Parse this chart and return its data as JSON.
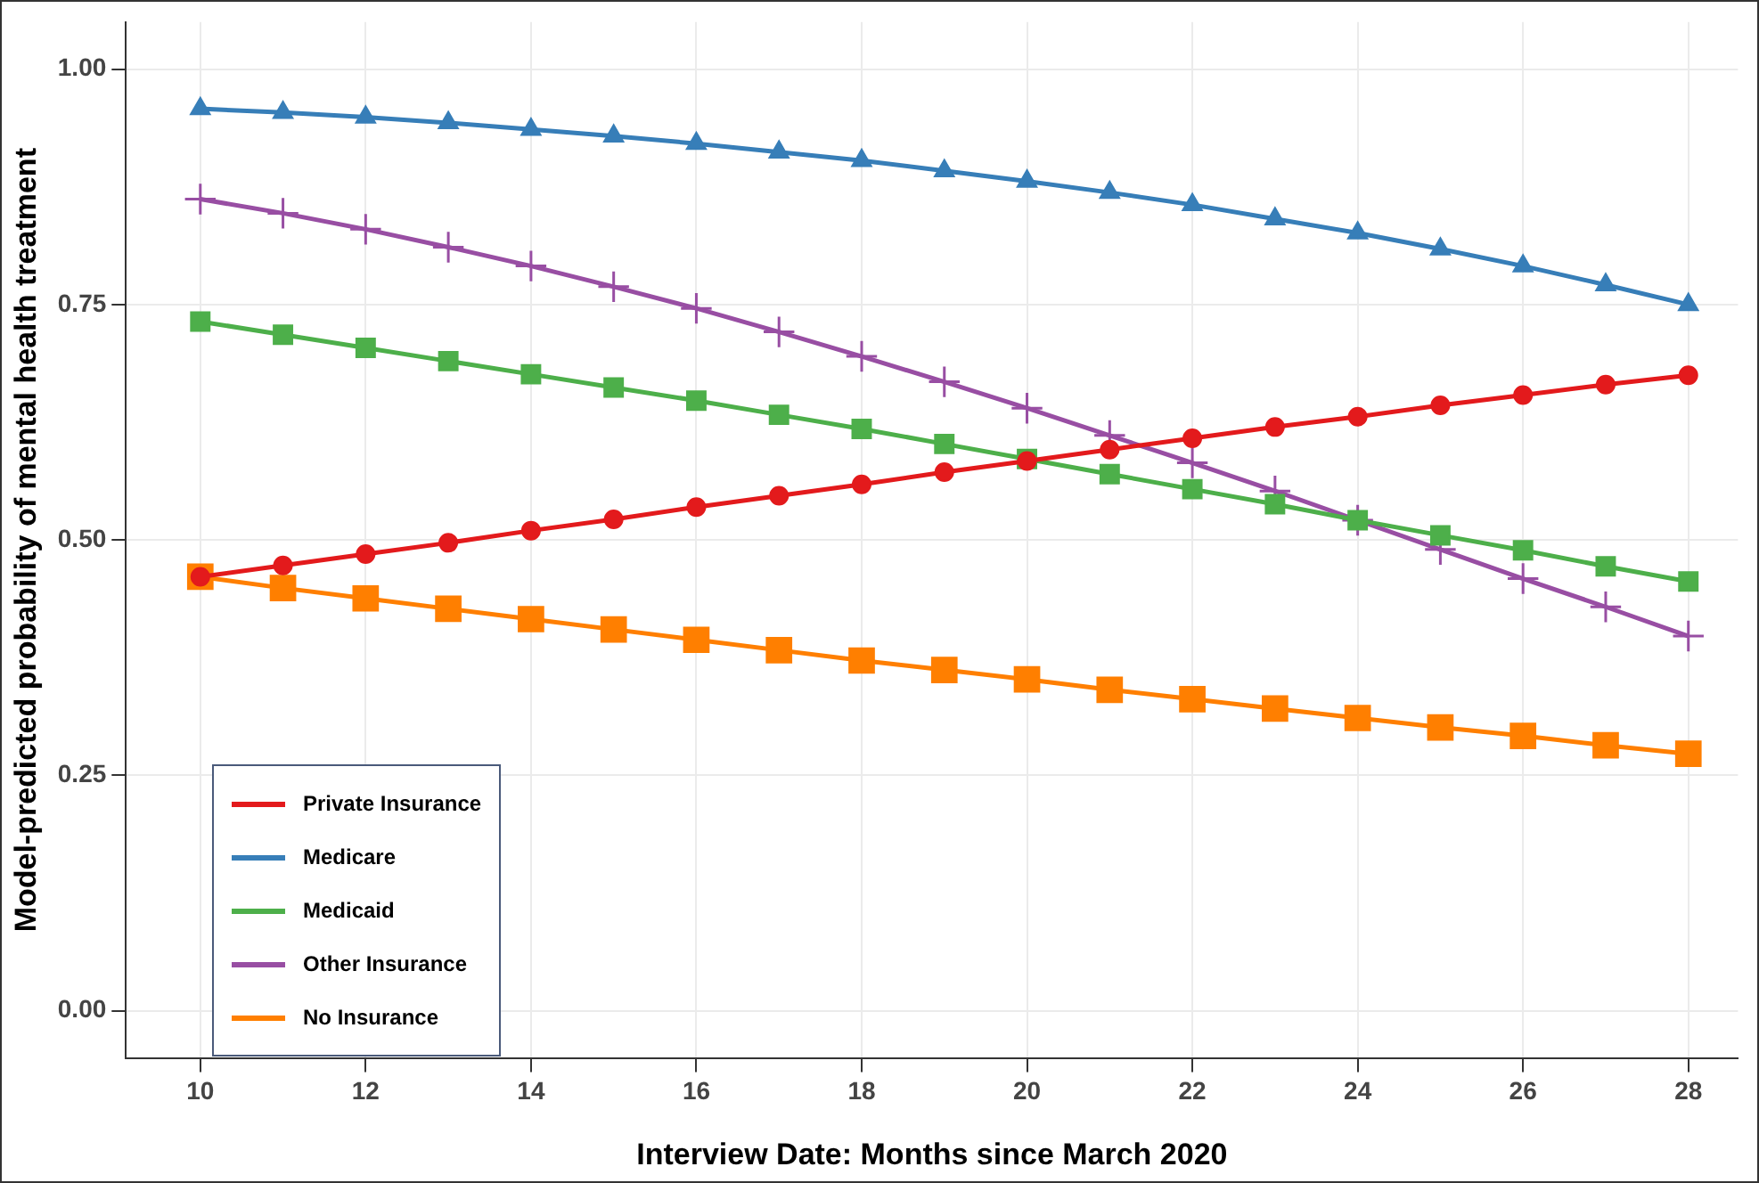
{
  "chart_data": {
    "type": "line",
    "xlabel": "Interview Date: Months since March 2020",
    "ylabel": "Model-predicted probability of mental health treatment",
    "xlim": [
      9.1,
      28.6
    ],
    "xticks": [
      10,
      12,
      14,
      16,
      18,
      20,
      22,
      24,
      26,
      28
    ],
    "ylim": [
      -0.05,
      1.05
    ],
    "yticks": [
      {
        "value": 0,
        "label": "0.00"
      },
      {
        "value": 0.25,
        "label": "0.25"
      },
      {
        "value": 0.5,
        "label": "0.50"
      },
      {
        "value": 0.75,
        "label": "0.75"
      },
      {
        "value": 1,
        "label": "1.00"
      }
    ],
    "grid": true,
    "legend": "bottom left",
    "x": [
      10,
      11,
      12,
      13,
      14,
      15,
      16,
      17,
      18,
      19,
      20,
      21,
      22,
      23,
      24,
      25,
      26,
      27,
      28
    ],
    "series": [
      {
        "name": "Private Insurance",
        "color": "#e31a1c",
        "marker": "circle",
        "values": [
          0.461,
          0.473,
          0.485,
          0.497,
          0.51,
          0.522,
          0.535,
          0.547,
          0.559,
          0.572,
          0.584,
          0.596,
          0.608,
          0.62,
          0.631,
          0.643,
          0.654,
          0.665,
          0.675
        ]
      },
      {
        "name": "Medicare",
        "color": "#377eb8",
        "marker": "triangle",
        "values": [
          0.958,
          0.954,
          0.949,
          0.943,
          0.936,
          0.929,
          0.921,
          0.912,
          0.903,
          0.892,
          0.881,
          0.869,
          0.856,
          0.841,
          0.826,
          0.809,
          0.791,
          0.771,
          0.75
        ]
      },
      {
        "name": "Medicaid",
        "color": "#4daf4a",
        "marker": "square",
        "values": [
          0.732,
          0.718,
          0.704,
          0.69,
          0.676,
          0.662,
          0.648,
          0.633,
          0.618,
          0.602,
          0.586,
          0.57,
          0.554,
          0.538,
          0.521,
          0.505,
          0.489,
          0.472,
          0.456
        ]
      },
      {
        "name": "Other Insurance",
        "color": "#984ea3",
        "marker": "cross",
        "values": [
          0.862,
          0.847,
          0.83,
          0.811,
          0.791,
          0.769,
          0.746,
          0.721,
          0.695,
          0.668,
          0.64,
          0.611,
          0.582,
          0.552,
          0.521,
          0.49,
          0.459,
          0.429,
          0.398
        ]
      },
      {
        "name": "No Insurance",
        "color": "#ff7f00",
        "marker": "square",
        "values": [
          0.461,
          0.449,
          0.438,
          0.427,
          0.416,
          0.405,
          0.394,
          0.383,
          0.372,
          0.362,
          0.352,
          0.341,
          0.331,
          0.321,
          0.311,
          0.301,
          0.292,
          0.282,
          0.273
        ]
      }
    ]
  }
}
